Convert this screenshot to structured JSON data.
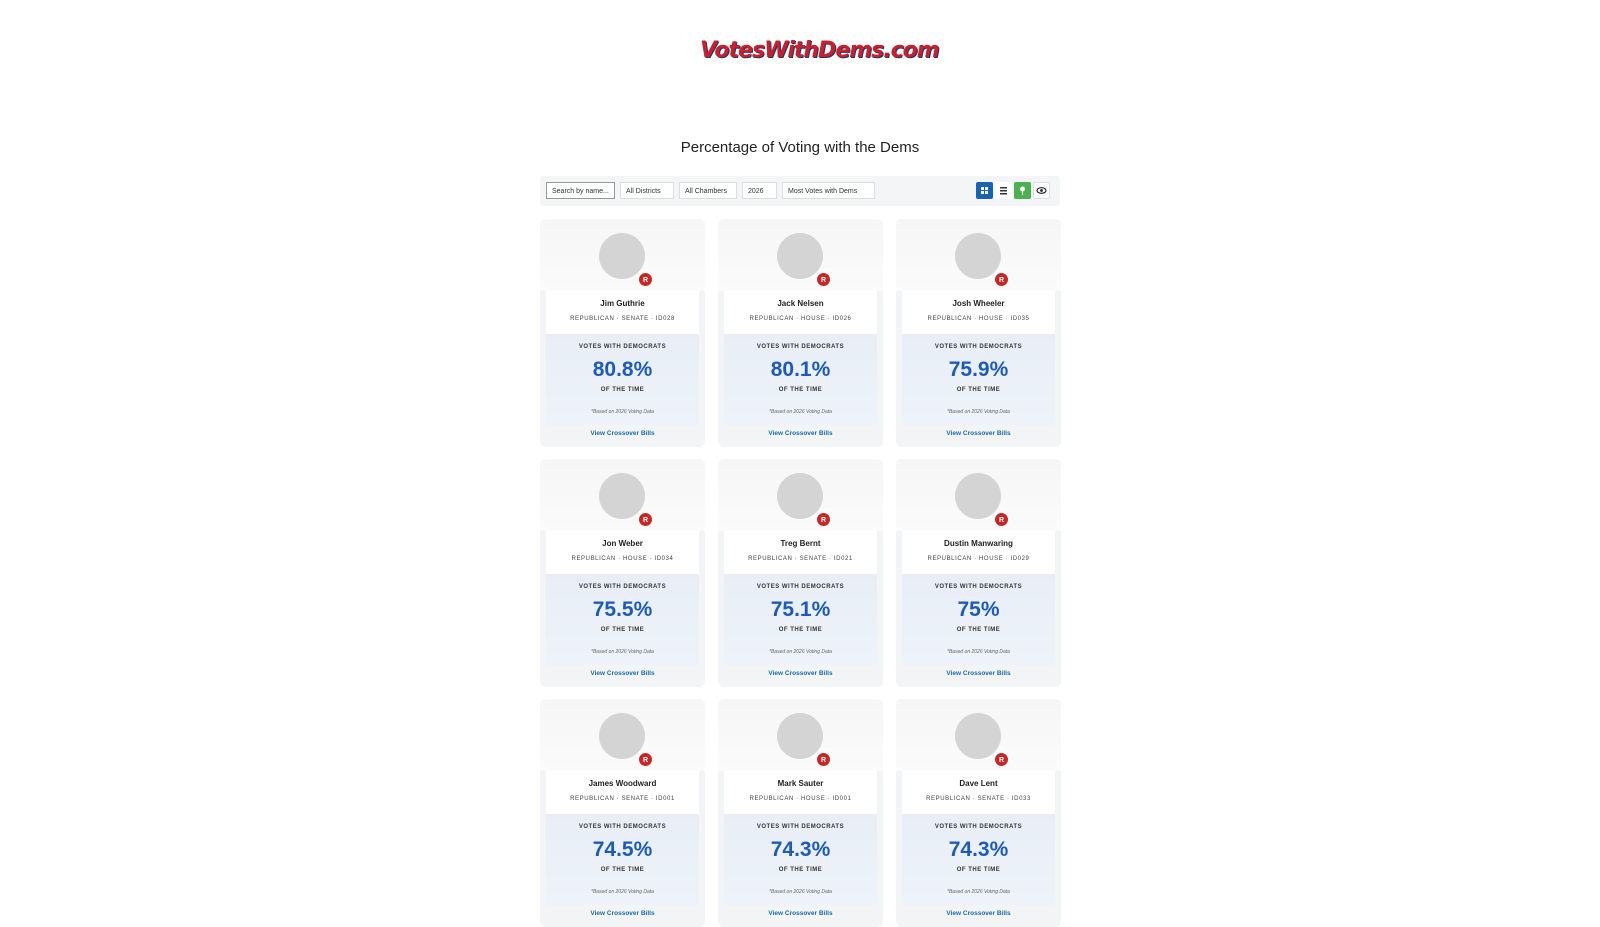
{
  "header": {
    "logo": "VotesWithDems.com",
    "title": "Percentage of Voting with the Dems"
  },
  "toolbar": {
    "search_placeholder": "Search by name...",
    "district": "All Districts",
    "chamber": "All Chambers",
    "year": "2026",
    "sort": "Most Votes with Dems"
  },
  "card_labels": {
    "stat_label": "VOTES WITH DEMOCRATS",
    "stat_suffix": "OF THE TIME",
    "note": "*Based on 2026 Voting Data",
    "link": "View Crossover Bills"
  },
  "cards": [
    {
      "name": "Jim Guthrie",
      "party": "R",
      "meta": "REPUBLICAN · SENATE · ID028",
      "percent": "80.8%"
    },
    {
      "name": "Jack Nelsen",
      "party": "R",
      "meta": "REPUBLICAN · HOUSE · ID026",
      "percent": "80.1%"
    },
    {
      "name": "Josh Wheeler",
      "party": "R",
      "meta": "REPUBLICAN · HOUSE · ID035",
      "percent": "75.9%"
    },
    {
      "name": "Jon Weber",
      "party": "R",
      "meta": "REPUBLICAN · HOUSE · ID034",
      "percent": "75.5%"
    },
    {
      "name": "Treg Bernt",
      "party": "R",
      "meta": "REPUBLICAN · SENATE · ID021",
      "percent": "75.1%"
    },
    {
      "name": "Dustin Manwaring",
      "party": "R",
      "meta": "REPUBLICAN · HOUSE · ID029",
      "percent": "75%"
    },
    {
      "name": "James Woodward",
      "party": "R",
      "meta": "REPUBLICAN · SENATE · ID001",
      "percent": "74.5%"
    },
    {
      "name": "Mark Sauter",
      "party": "R",
      "meta": "REPUBLICAN · HOUSE · ID001",
      "percent": "74.3%"
    },
    {
      "name": "Dave Lent",
      "party": "R",
      "meta": "REPUBLICAN · SENATE · ID033",
      "percent": "74.3%"
    }
  ]
}
